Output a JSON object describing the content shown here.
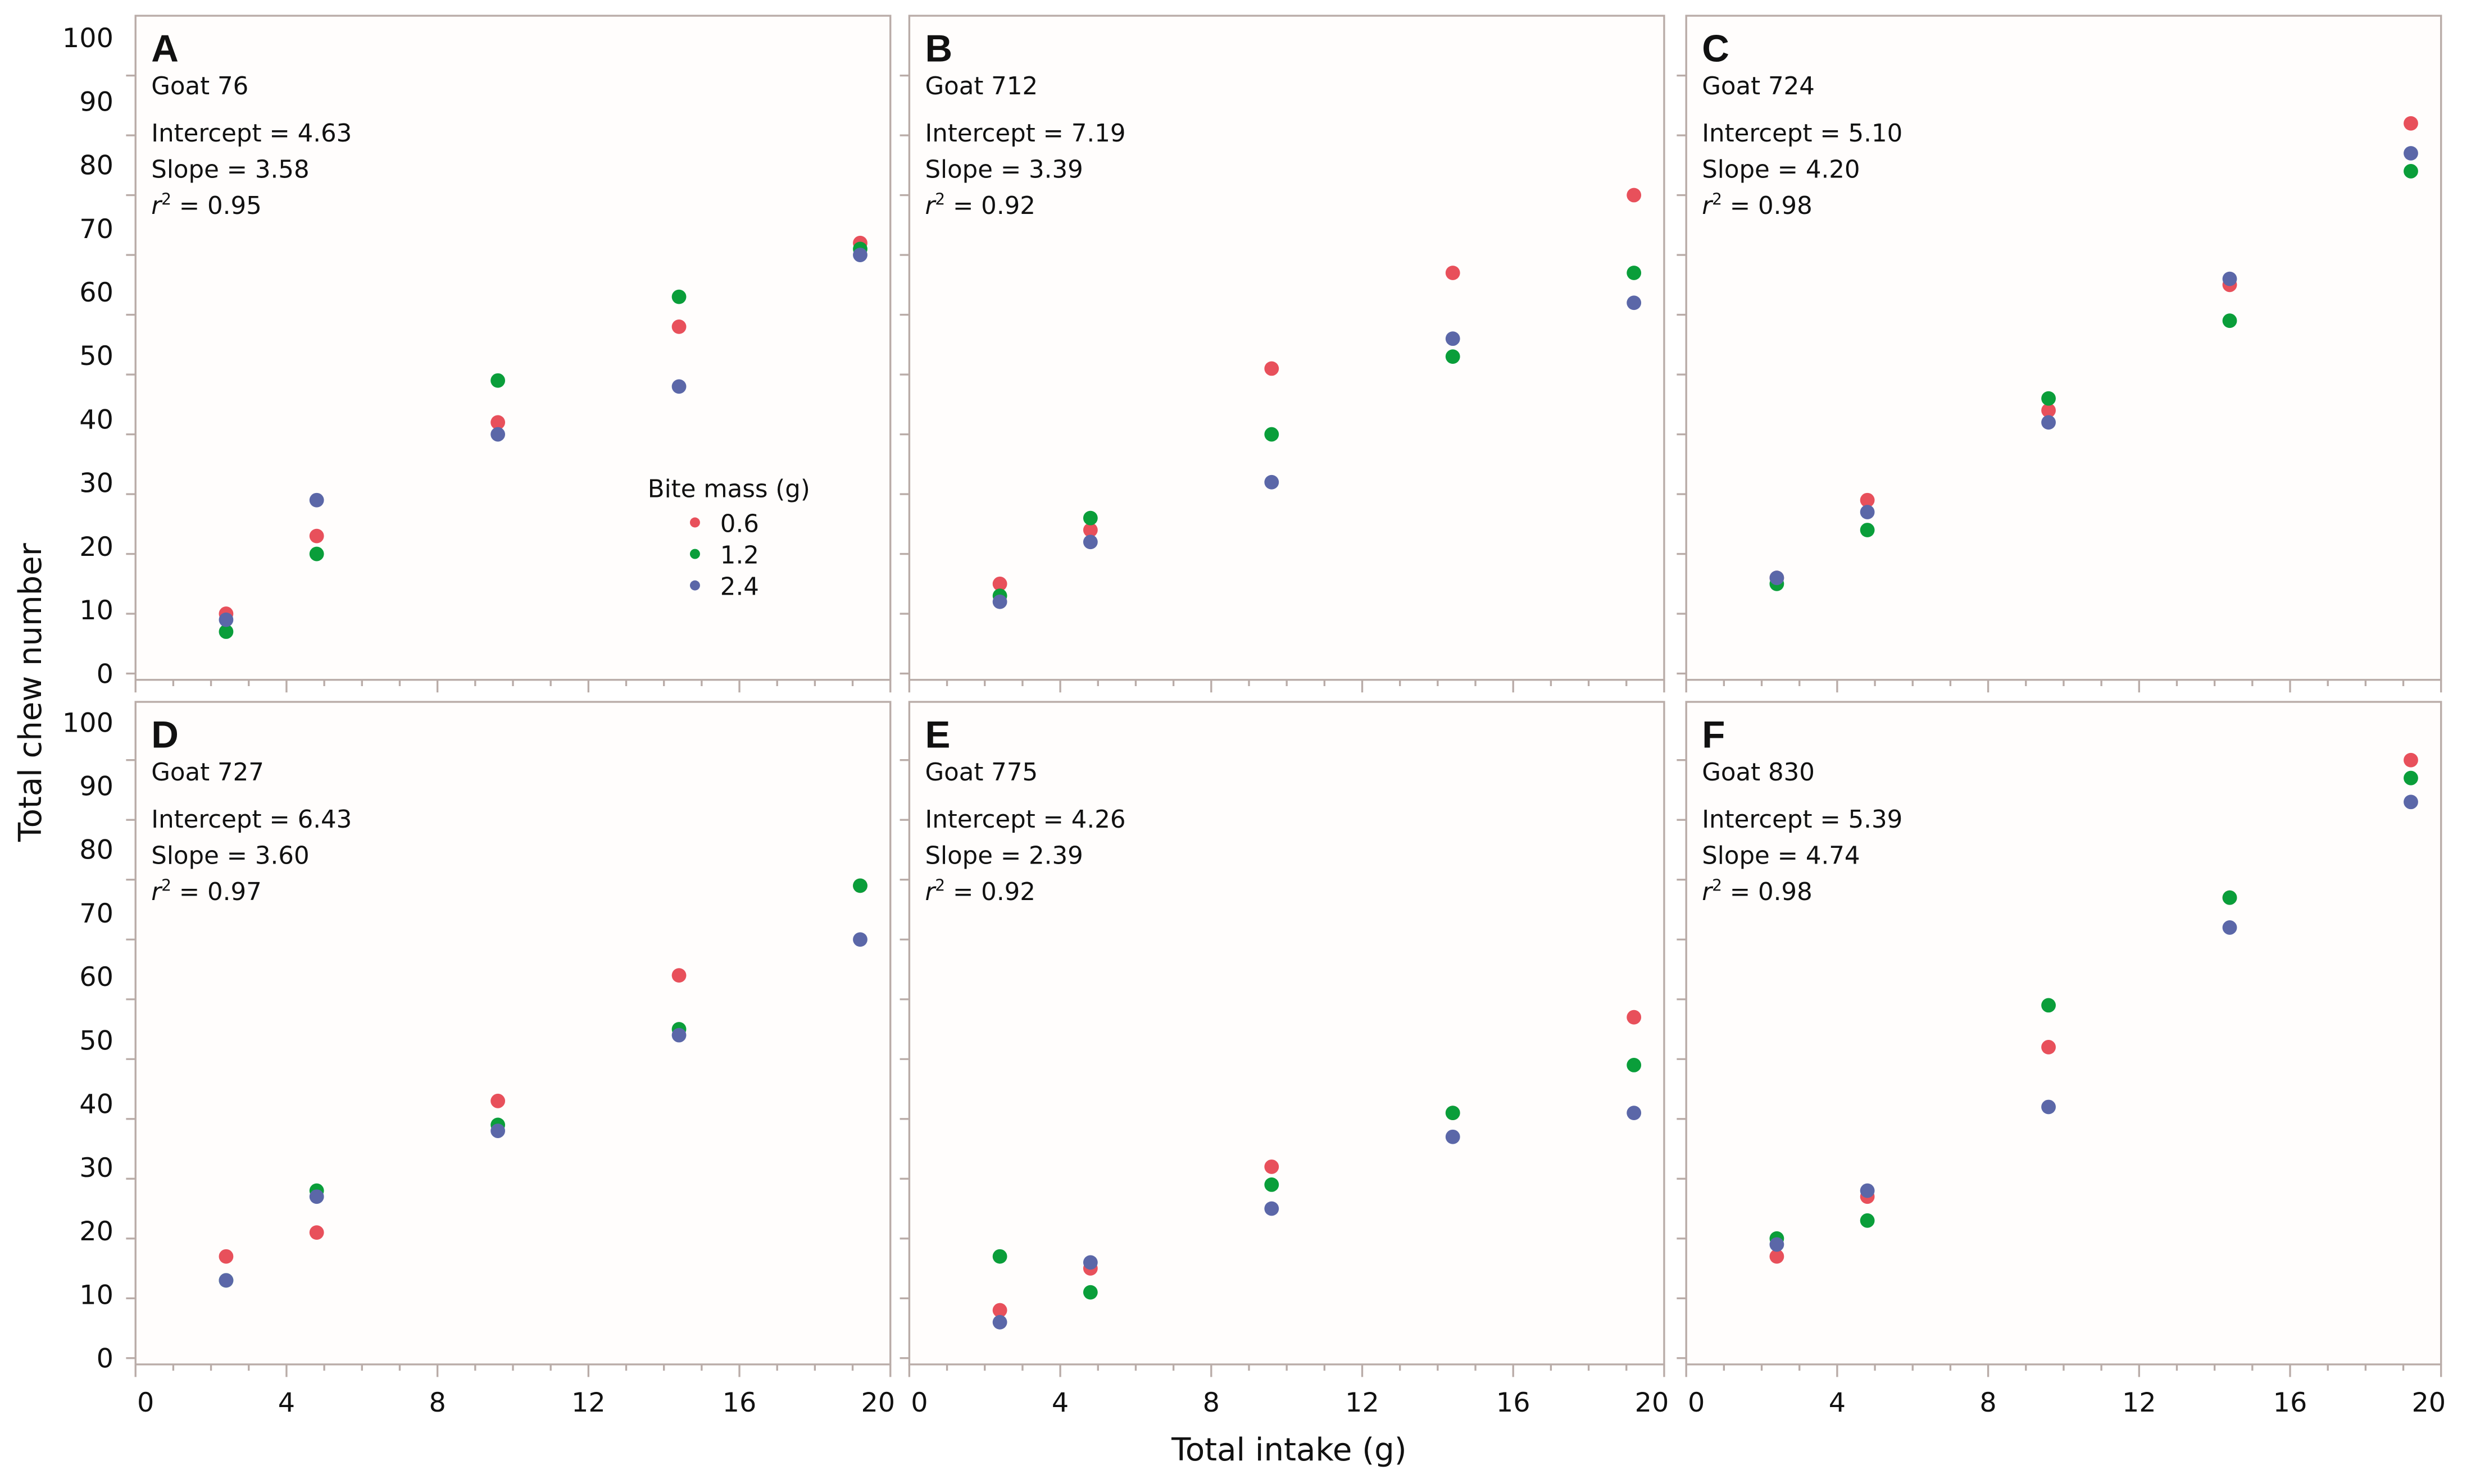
{
  "chart_data": {
    "type": "scatter",
    "xlabel": "Total intake (g)",
    "ylabel": "Total chew number",
    "xlim": [
      0,
      20
    ],
    "ylim": [
      0,
      100
    ],
    "x_ticks": [
      "0",
      "4",
      "8",
      "12",
      "16",
      "20"
    ],
    "y_ticks": [
      "0",
      "10",
      "20",
      "30",
      "40",
      "50",
      "60",
      "70",
      "80",
      "90",
      "100"
    ],
    "legend": {
      "title": "Bite mass (g)",
      "placement": "panel A, lower-right",
      "entries": [
        "0.6",
        "1.2",
        "2.4"
      ]
    },
    "series_colors": [
      "#e8505b",
      "#0a9e3a",
      "#5b67a8"
    ],
    "x": [
      2.4,
      4.8,
      9.6,
      14.4,
      19.2
    ],
    "panels": [
      {
        "label": "A",
        "goat": "Goat 76",
        "intercept": "Intercept = 4.63",
        "slope": "Slope = 3.58",
        "r_symbol": "r",
        "r_exp": "2",
        "r2": " = 0.95",
        "series": [
          {
            "name": "0.6",
            "values": [
              10,
              23,
              42,
              58,
              72
            ]
          },
          {
            "name": "1.2",
            "values": [
              7,
              20,
              49,
              63,
              71
            ]
          },
          {
            "name": "2.4",
            "values": [
              9,
              29,
              40,
              48,
              70
            ]
          }
        ]
      },
      {
        "label": "B",
        "goat": "Goat 712",
        "intercept": "Intercept = 7.19",
        "slope": "Slope = 3.39",
        "r_symbol": "r",
        "r_exp": "2",
        "r2": " = 0.92",
        "series": [
          {
            "name": "0.6",
            "values": [
              15,
              24,
              51,
              67,
              80
            ]
          },
          {
            "name": "1.2",
            "values": [
              13,
              26,
              40,
              53,
              67
            ]
          },
          {
            "name": "2.4",
            "values": [
              12,
              22,
              32,
              56,
              62
            ]
          }
        ]
      },
      {
        "label": "C",
        "goat": "Goat 724",
        "intercept": "Intercept = 5.10",
        "slope": "Slope = 4.20",
        "r_symbol": "r",
        "r_exp": "2",
        "r2": " = 0.98",
        "series": [
          {
            "name": "0.6",
            "values": [
              16,
              29,
              44,
              65,
              92
            ]
          },
          {
            "name": "1.2",
            "values": [
              15,
              24,
              46,
              59,
              84
            ]
          },
          {
            "name": "2.4",
            "values": [
              16,
              27,
              42,
              66,
              87
            ]
          }
        ]
      },
      {
        "label": "D",
        "goat": "Goat 727",
        "intercept": "Intercept = 6.43",
        "slope": "Slope = 3.60",
        "r_symbol": "r",
        "r_exp": "2",
        "r2": " = 0.97",
        "series": [
          {
            "name": "0.6",
            "values": [
              17,
              21,
              43,
              64,
              79
            ]
          },
          {
            "name": "1.2",
            "values": [
              13,
              28,
              39,
              55,
              79
            ]
          },
          {
            "name": "2.4",
            "values": [
              13,
              27,
              38,
              54,
              70
            ]
          }
        ]
      },
      {
        "label": "E",
        "goat": "Goat 775",
        "intercept": "Intercept = 4.26",
        "slope": "Slope = 2.39",
        "r_symbol": "r",
        "r_exp": "2",
        "r2": " = 0.92",
        "series": [
          {
            "name": "0.6",
            "values": [
              8,
              15,
              32,
              41,
              57
            ]
          },
          {
            "name": "1.2",
            "values": [
              17,
              11,
              29,
              41,
              49
            ]
          },
          {
            "name": "2.4",
            "values": [
              6,
              16,
              25,
              37,
              41
            ]
          }
        ]
      },
      {
        "label": "F",
        "goat": "Goat 830",
        "intercept": "Intercept = 5.39",
        "slope": "Slope = 4.74",
        "r_symbol": "r",
        "r_exp": "2",
        "r2": " = 0.98",
        "series": [
          {
            "name": "0.6",
            "values": [
              17,
              27,
              52,
              77,
              100
            ]
          },
          {
            "name": "1.2",
            "values": [
              20,
              23,
              59,
              77,
              97
            ]
          },
          {
            "name": "2.4",
            "values": [
              19,
              28,
              42,
              72,
              93
            ]
          }
        ]
      }
    ]
  }
}
